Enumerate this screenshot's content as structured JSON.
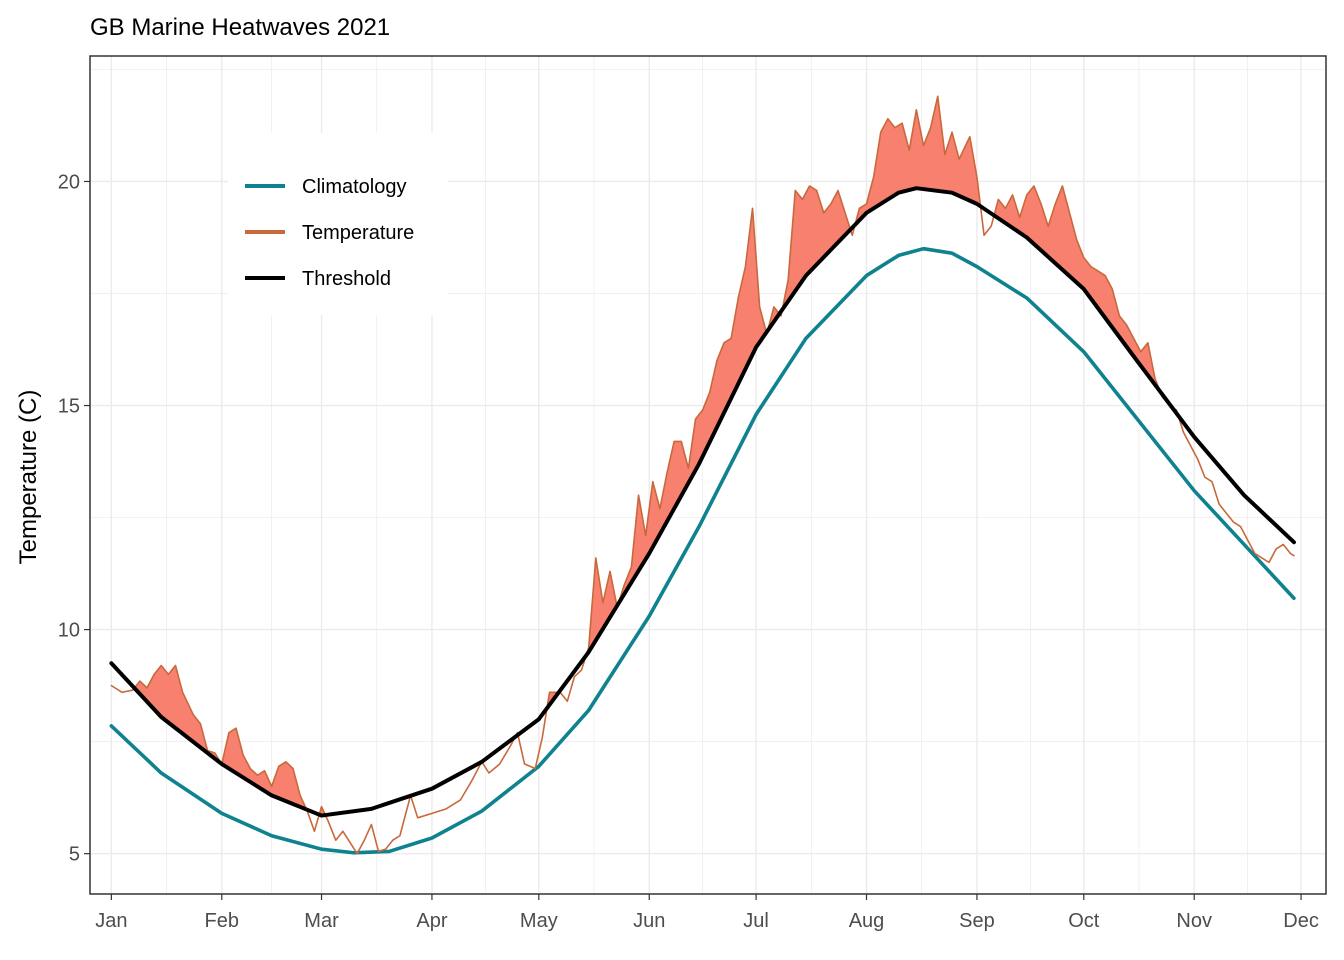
{
  "chart_data": {
    "type": "line",
    "title": "GB Marine Heatwaves 2021",
    "xlabel": "",
    "ylabel": "Temperature (C)",
    "xlim": [
      "2020-12-26",
      "2021-12-08"
    ],
    "ylim": [
      4.1,
      22.8
    ],
    "y_ticks": [
      5,
      10,
      15,
      20
    ],
    "x_ticks": [
      {
        "date": "2021-01-01",
        "label": "Jan"
      },
      {
        "date": "2021-02-01",
        "label": "Feb"
      },
      {
        "date": "2021-03-01",
        "label": "Mar"
      },
      {
        "date": "2021-04-01",
        "label": "Apr"
      },
      {
        "date": "2021-05-01",
        "label": "May"
      },
      {
        "date": "2021-06-01",
        "label": "Jun"
      },
      {
        "date": "2021-07-01",
        "label": "Jul"
      },
      {
        "date": "2021-08-01",
        "label": "Aug"
      },
      {
        "date": "2021-09-01",
        "label": "Sep"
      },
      {
        "date": "2021-10-01",
        "label": "Oct"
      },
      {
        "date": "2021-11-01",
        "label": "Nov"
      },
      {
        "date": "2021-12-01",
        "label": "Dec"
      }
    ],
    "grid": true,
    "legend_position": "top-left",
    "heatwave_fill_color": "#f8806f",
    "series": [
      {
        "name": "Climatology",
        "color": "#0f8290",
        "points": [
          [
            "2021-01-01",
            7.85
          ],
          [
            "2021-01-15",
            6.8
          ],
          [
            "2021-02-01",
            5.9
          ],
          [
            "2021-02-15",
            5.4
          ],
          [
            "2021-03-01",
            5.1
          ],
          [
            "2021-03-10",
            5.02
          ],
          [
            "2021-03-20",
            5.05
          ],
          [
            "2021-04-01",
            5.35
          ],
          [
            "2021-04-15",
            5.95
          ],
          [
            "2021-05-01",
            6.95
          ],
          [
            "2021-05-15",
            8.2
          ],
          [
            "2021-06-01",
            10.3
          ],
          [
            "2021-06-15",
            12.3
          ],
          [
            "2021-07-01",
            14.8
          ],
          [
            "2021-07-15",
            16.5
          ],
          [
            "2021-08-01",
            17.9
          ],
          [
            "2021-08-10",
            18.35
          ],
          [
            "2021-08-17",
            18.5
          ],
          [
            "2021-08-25",
            18.4
          ],
          [
            "2021-09-01",
            18.1
          ],
          [
            "2021-09-15",
            17.4
          ],
          [
            "2021-10-01",
            16.2
          ],
          [
            "2021-10-15",
            14.8
          ],
          [
            "2021-11-01",
            13.1
          ],
          [
            "2021-11-15",
            11.9
          ],
          [
            "2021-11-29",
            10.7
          ]
        ]
      },
      {
        "name": "Threshold",
        "color": "#000000",
        "points": [
          [
            "2021-01-01",
            9.25
          ],
          [
            "2021-01-15",
            8.05
          ],
          [
            "2021-02-01",
            7.0
          ],
          [
            "2021-02-15",
            6.3
          ],
          [
            "2021-03-01",
            5.85
          ],
          [
            "2021-03-15",
            6.0
          ],
          [
            "2021-04-01",
            6.45
          ],
          [
            "2021-04-15",
            7.05
          ],
          [
            "2021-05-01",
            8.0
          ],
          [
            "2021-05-15",
            9.5
          ],
          [
            "2021-06-01",
            11.7
          ],
          [
            "2021-06-15",
            13.7
          ],
          [
            "2021-07-01",
            16.3
          ],
          [
            "2021-07-15",
            17.9
          ],
          [
            "2021-08-01",
            19.3
          ],
          [
            "2021-08-10",
            19.75
          ],
          [
            "2021-08-15",
            19.85
          ],
          [
            "2021-08-25",
            19.75
          ],
          [
            "2021-09-01",
            19.5
          ],
          [
            "2021-09-15",
            18.75
          ],
          [
            "2021-10-01",
            17.6
          ],
          [
            "2021-10-15",
            16.1
          ],
          [
            "2021-11-01",
            14.3
          ],
          [
            "2021-11-15",
            13.0
          ],
          [
            "2021-11-29",
            11.95
          ]
        ]
      },
      {
        "name": "Temperature",
        "color": "#c8693c",
        "points": [
          [
            "2021-01-01",
            8.75
          ],
          [
            "2021-01-04",
            8.6
          ],
          [
            "2021-01-07",
            8.65
          ],
          [
            "2021-01-09",
            8.85
          ],
          [
            "2021-01-11",
            8.7
          ],
          [
            "2021-01-13",
            9.0
          ],
          [
            "2021-01-15",
            9.2
          ],
          [
            "2021-01-17",
            9.0
          ],
          [
            "2021-01-19",
            9.2
          ],
          [
            "2021-01-21",
            8.6
          ],
          [
            "2021-01-24",
            8.1
          ],
          [
            "2021-01-26",
            7.9
          ],
          [
            "2021-01-28",
            7.3
          ],
          [
            "2021-01-30",
            7.25
          ],
          [
            "2021-02-01",
            7.0
          ],
          [
            "2021-02-03",
            7.7
          ],
          [
            "2021-02-05",
            7.8
          ],
          [
            "2021-02-07",
            7.2
          ],
          [
            "2021-02-09",
            6.9
          ],
          [
            "2021-02-11",
            6.75
          ],
          [
            "2021-02-13",
            6.85
          ],
          [
            "2021-02-15",
            6.5
          ],
          [
            "2021-02-17",
            6.95
          ],
          [
            "2021-02-19",
            7.05
          ],
          [
            "2021-02-21",
            6.9
          ],
          [
            "2021-02-23",
            6.3
          ],
          [
            "2021-02-25",
            5.95
          ],
          [
            "2021-02-27",
            5.5
          ],
          [
            "2021-03-01",
            6.05
          ],
          [
            "2021-03-03",
            5.7
          ],
          [
            "2021-03-05",
            5.3
          ],
          [
            "2021-03-07",
            5.5
          ],
          [
            "2021-03-09",
            5.25
          ],
          [
            "2021-03-11",
            5.0
          ],
          [
            "2021-03-13",
            5.3
          ],
          [
            "2021-03-15",
            5.65
          ],
          [
            "2021-03-17",
            5.05
          ],
          [
            "2021-03-19",
            5.1
          ],
          [
            "2021-03-21",
            5.3
          ],
          [
            "2021-03-23",
            5.4
          ],
          [
            "2021-03-26",
            6.3
          ],
          [
            "2021-03-28",
            5.8
          ],
          [
            "2021-04-01",
            5.9
          ],
          [
            "2021-04-05",
            6.0
          ],
          [
            "2021-04-09",
            6.2
          ],
          [
            "2021-04-12",
            6.6
          ],
          [
            "2021-04-15",
            7.05
          ],
          [
            "2021-04-17",
            6.8
          ],
          [
            "2021-04-20",
            7.0
          ],
          [
            "2021-04-23",
            7.4
          ],
          [
            "2021-04-25",
            7.7
          ],
          [
            "2021-04-27",
            7.0
          ],
          [
            "2021-04-30",
            6.9
          ],
          [
            "2021-05-02",
            7.6
          ],
          [
            "2021-05-04",
            8.6
          ],
          [
            "2021-05-07",
            8.6
          ],
          [
            "2021-05-09",
            8.4
          ],
          [
            "2021-05-11",
            8.95
          ],
          [
            "2021-05-13",
            9.1
          ],
          [
            "2021-05-15",
            9.6
          ],
          [
            "2021-05-17",
            11.6
          ],
          [
            "2021-05-19",
            10.6
          ],
          [
            "2021-05-21",
            11.3
          ],
          [
            "2021-05-23",
            10.5
          ],
          [
            "2021-05-25",
            11.0
          ],
          [
            "2021-05-27",
            11.4
          ],
          [
            "2021-05-29",
            13.0
          ],
          [
            "2021-05-31",
            12.1
          ],
          [
            "2021-06-02",
            13.3
          ],
          [
            "2021-06-04",
            12.7
          ],
          [
            "2021-06-06",
            13.5
          ],
          [
            "2021-06-08",
            14.2
          ],
          [
            "2021-06-10",
            14.2
          ],
          [
            "2021-06-12",
            13.6
          ],
          [
            "2021-06-14",
            14.7
          ],
          [
            "2021-06-16",
            14.9
          ],
          [
            "2021-06-18",
            15.3
          ],
          [
            "2021-06-20",
            16.0
          ],
          [
            "2021-06-22",
            16.4
          ],
          [
            "2021-06-24",
            16.5
          ],
          [
            "2021-06-26",
            17.4
          ],
          [
            "2021-06-28",
            18.1
          ],
          [
            "2021-06-30",
            19.4
          ],
          [
            "2021-07-02",
            17.2
          ],
          [
            "2021-07-04",
            16.6
          ],
          [
            "2021-07-06",
            17.2
          ],
          [
            "2021-07-08",
            17.0
          ],
          [
            "2021-07-10",
            17.8
          ],
          [
            "2021-07-12",
            19.8
          ],
          [
            "2021-07-14",
            19.6
          ],
          [
            "2021-07-16",
            19.9
          ],
          [
            "2021-07-18",
            19.8
          ],
          [
            "2021-07-20",
            19.3
          ],
          [
            "2021-07-22",
            19.5
          ],
          [
            "2021-07-24",
            19.8
          ],
          [
            "2021-07-26",
            19.3
          ],
          [
            "2021-07-28",
            18.8
          ],
          [
            "2021-07-30",
            19.4
          ],
          [
            "2021-08-01",
            19.5
          ],
          [
            "2021-08-03",
            20.1
          ],
          [
            "2021-08-05",
            21.1
          ],
          [
            "2021-08-07",
            21.4
          ],
          [
            "2021-08-09",
            21.2
          ],
          [
            "2021-08-11",
            21.3
          ],
          [
            "2021-08-13",
            20.7
          ],
          [
            "2021-08-15",
            21.6
          ],
          [
            "2021-08-17",
            20.8
          ],
          [
            "2021-08-19",
            21.2
          ],
          [
            "2021-08-21",
            21.9
          ],
          [
            "2021-08-23",
            20.6
          ],
          [
            "2021-08-25",
            21.1
          ],
          [
            "2021-08-27",
            20.5
          ],
          [
            "2021-08-30",
            21.0
          ],
          [
            "2021-09-01",
            20.1
          ],
          [
            "2021-09-03",
            18.8
          ],
          [
            "2021-09-05",
            19.0
          ],
          [
            "2021-09-07",
            19.6
          ],
          [
            "2021-09-09",
            19.4
          ],
          [
            "2021-09-11",
            19.7
          ],
          [
            "2021-09-13",
            19.2
          ],
          [
            "2021-09-15",
            19.7
          ],
          [
            "2021-09-17",
            19.9
          ],
          [
            "2021-09-19",
            19.5
          ],
          [
            "2021-09-21",
            19.0
          ],
          [
            "2021-09-23",
            19.5
          ],
          [
            "2021-09-25",
            19.9
          ],
          [
            "2021-09-27",
            19.3
          ],
          [
            "2021-09-29",
            18.7
          ],
          [
            "2021-10-01",
            18.3
          ],
          [
            "2021-10-03",
            18.1
          ],
          [
            "2021-10-05",
            18.0
          ],
          [
            "2021-10-07",
            17.9
          ],
          [
            "2021-10-09",
            17.6
          ],
          [
            "2021-10-11",
            17.0
          ],
          [
            "2021-10-13",
            16.8
          ],
          [
            "2021-10-15",
            16.5
          ],
          [
            "2021-10-17",
            16.2
          ],
          [
            "2021-10-19",
            16.4
          ],
          [
            "2021-10-21",
            15.6
          ],
          [
            "2021-10-23",
            15.2
          ],
          [
            "2021-10-25",
            15.0
          ],
          [
            "2021-10-27",
            14.9
          ],
          [
            "2021-10-29",
            14.4
          ],
          [
            "2021-10-31",
            14.1
          ],
          [
            "2021-11-02",
            13.8
          ],
          [
            "2021-11-04",
            13.4
          ],
          [
            "2021-11-06",
            13.3
          ],
          [
            "2021-11-08",
            12.8
          ],
          [
            "2021-11-10",
            12.6
          ],
          [
            "2021-11-12",
            12.4
          ],
          [
            "2021-11-14",
            12.3
          ],
          [
            "2021-11-16",
            12.0
          ],
          [
            "2021-11-18",
            11.7
          ],
          [
            "2021-11-20",
            11.6
          ],
          [
            "2021-11-22",
            11.5
          ],
          [
            "2021-11-24",
            11.8
          ],
          [
            "2021-11-26",
            11.9
          ],
          [
            "2021-11-28",
            11.7
          ],
          [
            "2021-11-29",
            11.65
          ]
        ]
      }
    ],
    "legend": [
      {
        "label": "Climatology",
        "color": "#0f8290"
      },
      {
        "label": "Temperature",
        "color": "#c8693c"
      },
      {
        "label": "Threshold",
        "color": "#000000"
      }
    ]
  }
}
